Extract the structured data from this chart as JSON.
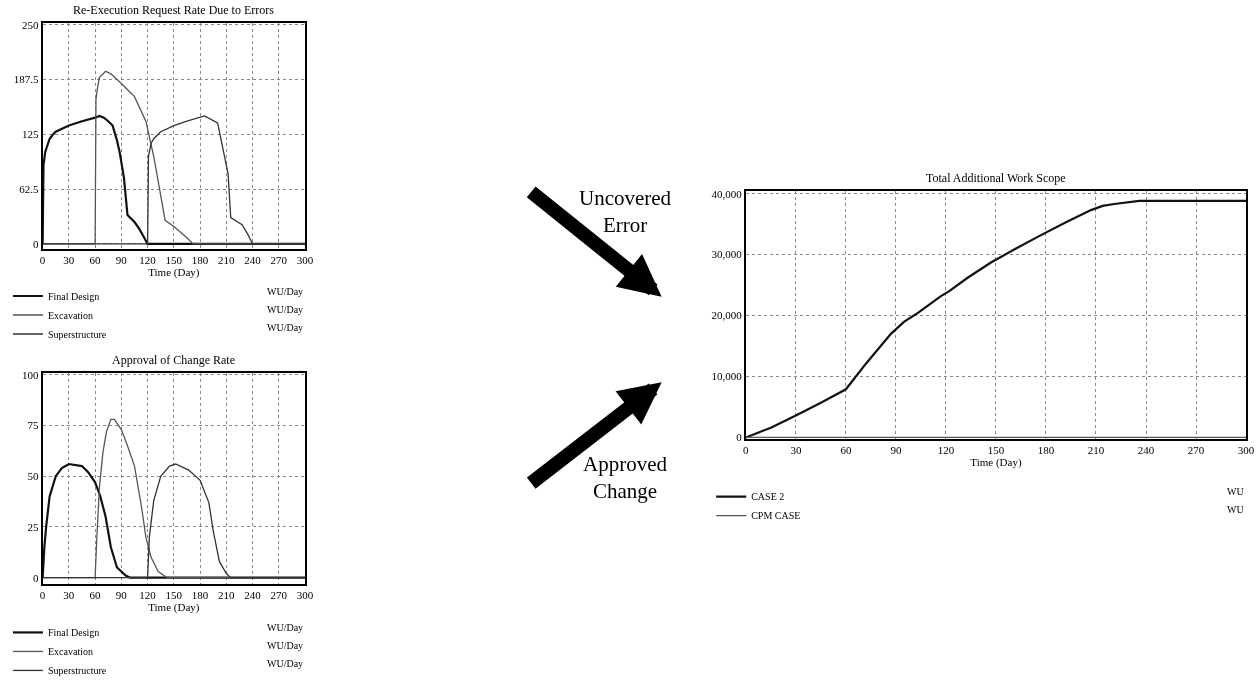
{
  "chart_data": [
    {
      "type": "line",
      "title": "Re-Execution Request Rate Due to Errors",
      "xlabel": "Time (Day)",
      "xlim": [
        0,
        300
      ],
      "xticks": [
        0,
        30,
        60,
        90,
        120,
        150,
        180,
        210,
        240,
        270,
        300
      ],
      "ylim": [
        -6,
        252
      ],
      "yticks": [
        0,
        62.5,
        125,
        187.5,
        250
      ],
      "grid": true,
      "legend": "bottom",
      "annotations": [
        "WU/Day",
        "WU/Day",
        "WU/Day"
      ],
      "series": [
        {
          "name": "Final Design",
          "color": "#111111",
          "x": [
            0,
            1,
            3,
            8,
            12,
            15,
            30,
            45,
            60,
            65,
            70,
            75,
            80,
            85,
            88,
            93,
            97,
            105,
            110,
            115,
            120,
            300
          ],
          "values": [
            0,
            90,
            105,
            120,
            125,
            128,
            135,
            140,
            144,
            146,
            144,
            140,
            135,
            118,
            105,
            75,
            33,
            25,
            18,
            9,
            0,
            0
          ]
        },
        {
          "name": "Excavation",
          "color": "#555555",
          "x": [
            0,
            60,
            61,
            63,
            65,
            72,
            78,
            90,
            105,
            118,
            127,
            135,
            140,
            150,
            165,
            172,
            300
          ],
          "values": [
            0,
            0,
            165,
            180,
            190,
            197,
            194,
            183,
            168,
            140,
            100,
            55,
            27,
            20,
            7,
            0,
            0
          ]
        },
        {
          "name": "Superstructure",
          "color": "#333333",
          "x": [
            0,
            120,
            121,
            124,
            127,
            135,
            150,
            165,
            185,
            200,
            212,
            215,
            228,
            235,
            240,
            300
          ],
          "values": [
            0,
            0,
            100,
            115,
            120,
            128,
            135,
            140,
            146,
            138,
            80,
            30,
            22,
            10,
            0,
            0
          ]
        }
      ]
    },
    {
      "type": "line",
      "title": "Approval of Change Rate",
      "xlabel": "Time (Day)",
      "xlim": [
        0,
        300
      ],
      "xticks": [
        0,
        30,
        60,
        90,
        120,
        150,
        180,
        210,
        240,
        270,
        300
      ],
      "ylim": [
        -3,
        101
      ],
      "yticks": [
        0,
        25,
        50,
        75,
        100
      ],
      "grid": true,
      "legend": "bottom",
      "annotations": [
        "WU/Day",
        "WU/Day",
        "WU/Day"
      ],
      "series": [
        {
          "name": "Final Design",
          "color": "#111111",
          "x": [
            0,
            2,
            4,
            8,
            15,
            22,
            30,
            45,
            52,
            60,
            66,
            72,
            78,
            85,
            95,
            100,
            300
          ],
          "values": [
            0,
            15,
            25,
            40,
            50,
            54,
            56,
            55,
            52,
            47,
            40,
            30,
            15,
            5,
            1,
            0,
            0
          ]
        },
        {
          "name": "Excavation",
          "color": "#555555",
          "x": [
            0,
            60,
            62,
            65,
            69,
            73,
            78,
            82,
            90,
            97,
            105,
            113,
            118,
            124,
            132,
            142,
            300
          ],
          "values": [
            0,
            0,
            20,
            45,
            62,
            72,
            78,
            78,
            73,
            65,
            55,
            35,
            20,
            10,
            3,
            0,
            0
          ]
        },
        {
          "name": "Superstructure",
          "color": "#333333",
          "x": [
            0,
            120,
            122,
            127,
            135,
            145,
            152,
            167,
            180,
            190,
            195,
            202,
            210,
            215,
            300
          ],
          "values": [
            0,
            0,
            20,
            38,
            50,
            55,
            56,
            53,
            48,
            37,
            23,
            8,
            2,
            0,
            0
          ]
        }
      ]
    },
    {
      "type": "other",
      "annotations": [
        "Uncovered Error",
        "Approved Change"
      ]
    },
    {
      "type": "line",
      "title": "Total Additional Work Scope",
      "xlabel": "Time (Day)",
      "xlim": [
        0,
        300
      ],
      "xticks": [
        0,
        30,
        60,
        90,
        120,
        150,
        180,
        210,
        240,
        270,
        300
      ],
      "ylim": [
        -300,
        40400
      ],
      "yticks": [
        0,
        {
          "value": 10000,
          "label": "10,000"
        },
        {
          "value": 20000,
          "label": "20,000"
        },
        {
          "value": 30000,
          "label": "30,000"
        },
        {
          "value": 40000,
          "label": "40,000"
        }
      ],
      "grid": true,
      "legend": "bottom",
      "annotations": [
        "WU",
        "WU"
      ],
      "series": [
        {
          "name": "CASE 2",
          "color": "#111111",
          "x": [
            0,
            15,
            30,
            45,
            60,
            72,
            87,
            95,
            103,
            117,
            122,
            133,
            147,
            162,
            177,
            192,
            207,
            214,
            221,
            236,
            300
          ],
          "values": [
            0,
            1600,
            3600,
            5700,
            7900,
            12100,
            17000,
            19000,
            20400,
            23200,
            24000,
            26200,
            28700,
            31000,
            33200,
            35300,
            37300,
            38000,
            38300,
            38800,
            38800
          ]
        },
        {
          "name": "CPM CASE",
          "color": "#555555",
          "x": [
            0,
            300
          ],
          "values": [
            0,
            0
          ]
        }
      ]
    }
  ]
}
